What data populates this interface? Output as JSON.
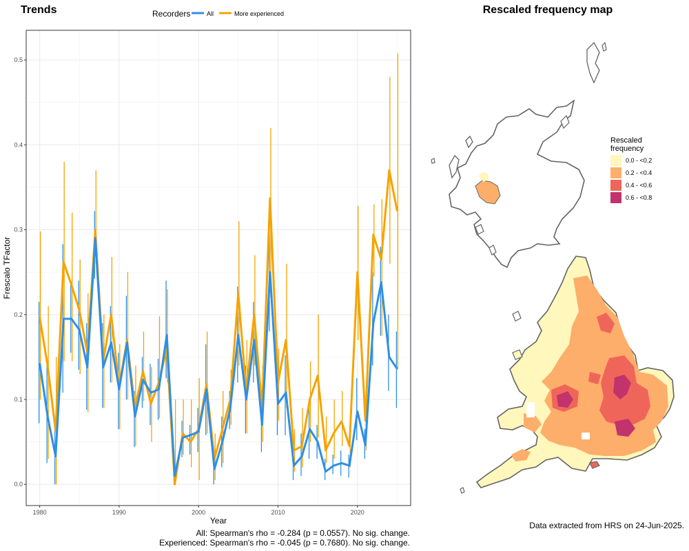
{
  "trends": {
    "title": "Trends",
    "legend_title": "Recorders",
    "stats": [
      "All: Spearman's rho = -0.284 (p = 0.0557). No sig. change.",
      "Experienced: Spearman's rho = -0.045 (p = 0.7680). No sig. change."
    ]
  },
  "map": {
    "title": "Rescaled frequency map",
    "legend_title_lines": [
      "Rescaled",
      "frequency"
    ],
    "legend": [
      {
        "label": "0.0 - <0.2",
        "color": "#FFF7BC"
      },
      {
        "label": "0.2 - <0.4",
        "color": "#FDAE6B"
      },
      {
        "label": "0.4 - <0.6",
        "color": "#F0655A"
      },
      {
        "label": "0.6 - <0.8",
        "color": "#C2336B"
      }
    ],
    "outline_color": "#636363",
    "footer": "Data extracted from HRS on 24-Jun-2025."
  },
  "chart_data": {
    "type": "line",
    "xlabel": "Year",
    "ylabel": "Frescalo TFactor",
    "xlim": [
      1978.3,
      2026.7
    ],
    "ylim": [
      -0.025,
      0.535
    ],
    "x_ticks": [
      1980,
      1990,
      2000,
      2010,
      2020
    ],
    "y_ticks": [
      0.0,
      0.1,
      0.2,
      0.3,
      0.4,
      0.5
    ],
    "y_tick_labels": [
      "0.0",
      "0.1",
      "0.2",
      "0.3",
      "0.4",
      "0.5"
    ],
    "grid": true,
    "legend_position": "top",
    "x": [
      1980,
      1981,
      1982,
      1983,
      1984,
      1985,
      1986,
      1987,
      1988,
      1989,
      1990,
      1991,
      1992,
      1993,
      1994,
      1995,
      1996,
      1997,
      1998,
      1999,
      2000,
      2001,
      2002,
      2003,
      2004,
      2005,
      2006,
      2007,
      2008,
      2009,
      2010,
      2011,
      2012,
      2013,
      2014,
      2015,
      2016,
      2017,
      2018,
      2019,
      2020,
      2021,
      2022,
      2023,
      2024,
      2025
    ],
    "series": [
      {
        "name": "All",
        "color": "#2E8FE6",
        "values": [
          0.143,
          0.08,
          0.033,
          0.195,
          0.195,
          0.182,
          0.138,
          0.29,
          0.138,
          0.167,
          0.112,
          0.167,
          0.08,
          0.123,
          0.108,
          0.112,
          0.176,
          0.01,
          0.055,
          0.058,
          0.062,
          0.112,
          0.018,
          0.05,
          0.09,
          0.176,
          0.1,
          0.17,
          0.07,
          0.25,
          0.095,
          0.108,
          0.022,
          0.033,
          0.065,
          0.05,
          0.015,
          0.022,
          0.025,
          0.022,
          0.086,
          0.046,
          0.19,
          0.238,
          0.15,
          0.136
        ],
        "lower": [
          0.072,
          0.025,
          0.0,
          0.108,
          0.155,
          0.135,
          0.088,
          0.242,
          0.09,
          0.12,
          0.065,
          0.1,
          0.044,
          0.09,
          0.07,
          0.076,
          0.125,
          0.0,
          0.032,
          0.035,
          0.038,
          0.058,
          0.0,
          0.02,
          0.065,
          0.12,
          0.06,
          0.12,
          0.038,
          0.18,
          0.058,
          0.058,
          0.005,
          0.01,
          0.03,
          0.03,
          0.005,
          0.012,
          0.01,
          0.008,
          0.052,
          0.03,
          0.14,
          0.175,
          0.11,
          0.09
        ],
        "upper": [
          0.215,
          0.14,
          0.066,
          0.283,
          0.238,
          0.24,
          0.19,
          0.322,
          0.19,
          0.21,
          0.155,
          0.222,
          0.11,
          0.15,
          0.142,
          0.148,
          0.24,
          0.04,
          0.075,
          0.07,
          0.09,
          0.165,
          0.04,
          0.08,
          0.11,
          0.233,
          0.14,
          0.215,
          0.105,
          0.315,
          0.133,
          0.152,
          0.04,
          0.06,
          0.1,
          0.07,
          0.03,
          0.035,
          0.04,
          0.035,
          0.125,
          0.065,
          0.25,
          0.28,
          0.2,
          0.18
        ]
      },
      {
        "name": "More experienced",
        "color": "#F5A300",
        "values": [
          0.197,
          0.14,
          0.063,
          0.262,
          0.235,
          0.205,
          0.155,
          0.3,
          0.145,
          0.2,
          0.115,
          0.17,
          0.09,
          0.133,
          0.095,
          0.12,
          0.16,
          0.0,
          0.06,
          0.05,
          0.065,
          0.118,
          0.03,
          0.065,
          0.1,
          0.225,
          0.11,
          0.2,
          0.09,
          0.337,
          0.12,
          0.17,
          0.04,
          0.045,
          0.1,
          0.128,
          0.04,
          0.06,
          0.074,
          0.045,
          0.25,
          0.075,
          0.294,
          0.265,
          0.37,
          0.322
        ],
        "lower": [
          0.1,
          0.03,
          0.0,
          0.145,
          0.145,
          0.13,
          0.085,
          0.26,
          0.09,
          0.12,
          0.065,
          0.1,
          0.045,
          0.098,
          0.05,
          0.078,
          0.12,
          0.0,
          0.035,
          0.02,
          0.005,
          0.06,
          0.005,
          0.025,
          0.07,
          0.14,
          0.06,
          0.14,
          0.05,
          0.22,
          0.075,
          0.09,
          0.015,
          0.02,
          0.05,
          0.055,
          0.025,
          0.03,
          0.045,
          0.02,
          0.17,
          0.04,
          0.245,
          0.175,
          0.26,
          0.135
        ],
        "upper": [
          0.298,
          0.21,
          0.15,
          0.38,
          0.32,
          0.265,
          0.225,
          0.37,
          0.2,
          0.268,
          0.165,
          0.25,
          0.14,
          0.18,
          0.138,
          0.198,
          0.23,
          0.1,
          0.1,
          0.1,
          0.125,
          0.18,
          0.06,
          0.11,
          0.135,
          0.31,
          0.17,
          0.27,
          0.14,
          0.42,
          0.16,
          0.26,
          0.065,
          0.09,
          0.145,
          0.2,
          0.08,
          0.1,
          0.11,
          0.07,
          0.328,
          0.11,
          0.33,
          0.336,
          0.48,
          0.508
        ]
      }
    ]
  }
}
